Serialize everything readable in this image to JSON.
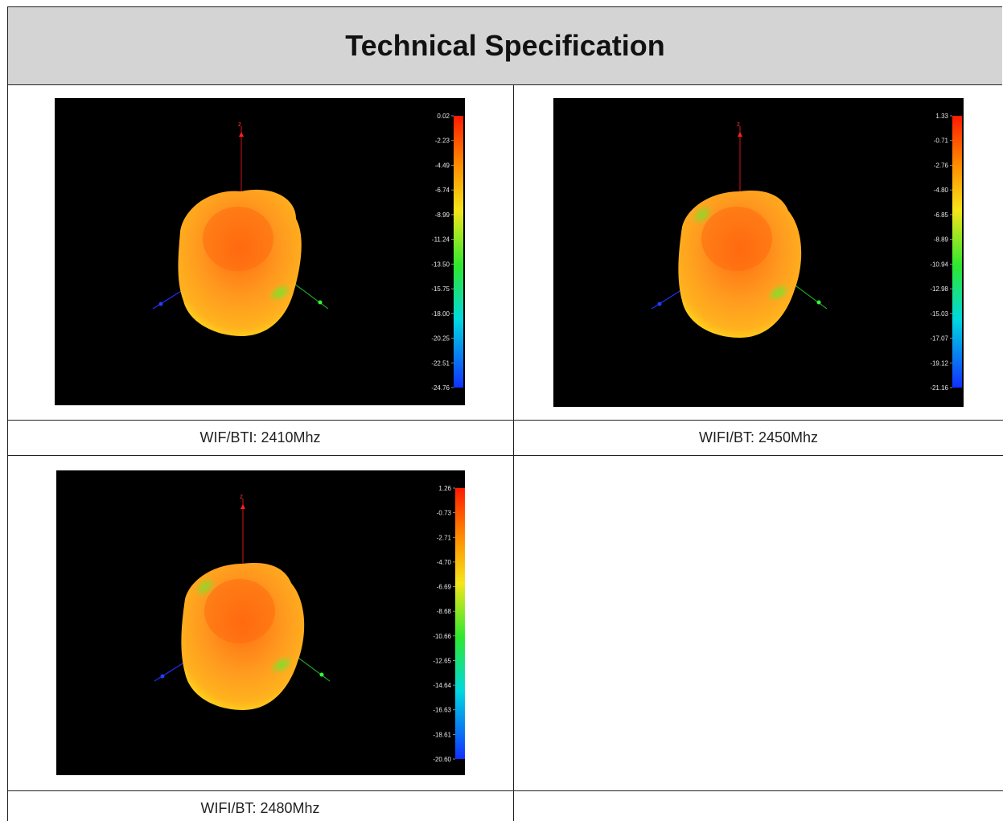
{
  "header": {
    "title": "Technical Specification"
  },
  "plots": [
    {
      "caption": "WIF/BTI: 2410Mhz",
      "scale": [
        "0.02",
        "-2.23",
        "-4.49",
        "-6.74",
        "-8.99",
        "-11.24",
        "-13.50",
        "-15.75",
        "-18.00",
        "-20.25",
        "-22.51",
        "-24.76"
      ],
      "lobe_variant": "a"
    },
    {
      "caption": "WIFI/BT: 2450Mhz",
      "scale": [
        "1.33",
        "-0.71",
        "-2.76",
        "-4.80",
        "-6.85",
        "-8.89",
        "-10.94",
        "-12.98",
        "-15.03",
        "-17.07",
        "-19.12",
        "-21.16"
      ],
      "lobe_variant": "b"
    },
    {
      "caption": "WIFI/BT: 2480Mhz",
      "scale": [
        "1.26",
        "-0.73",
        "-2.71",
        "-4.70",
        "-6.69",
        "-8.68",
        "-10.66",
        "-12.65",
        "-14.64",
        "-16.63",
        "-18.61",
        "-20.60"
      ],
      "lobe_variant": "b"
    }
  ],
  "axis_labels": {
    "z": "z",
    "x": "x",
    "y": "y"
  },
  "colors": {
    "header_bg": "#d4d4d4",
    "plot_bg": "#000000",
    "lobe_main": "#ff9a1f",
    "lobe_hot": "#ff6a10",
    "lobe_edge": "#ffd21a",
    "lobe_green": "#7fe02a"
  }
}
